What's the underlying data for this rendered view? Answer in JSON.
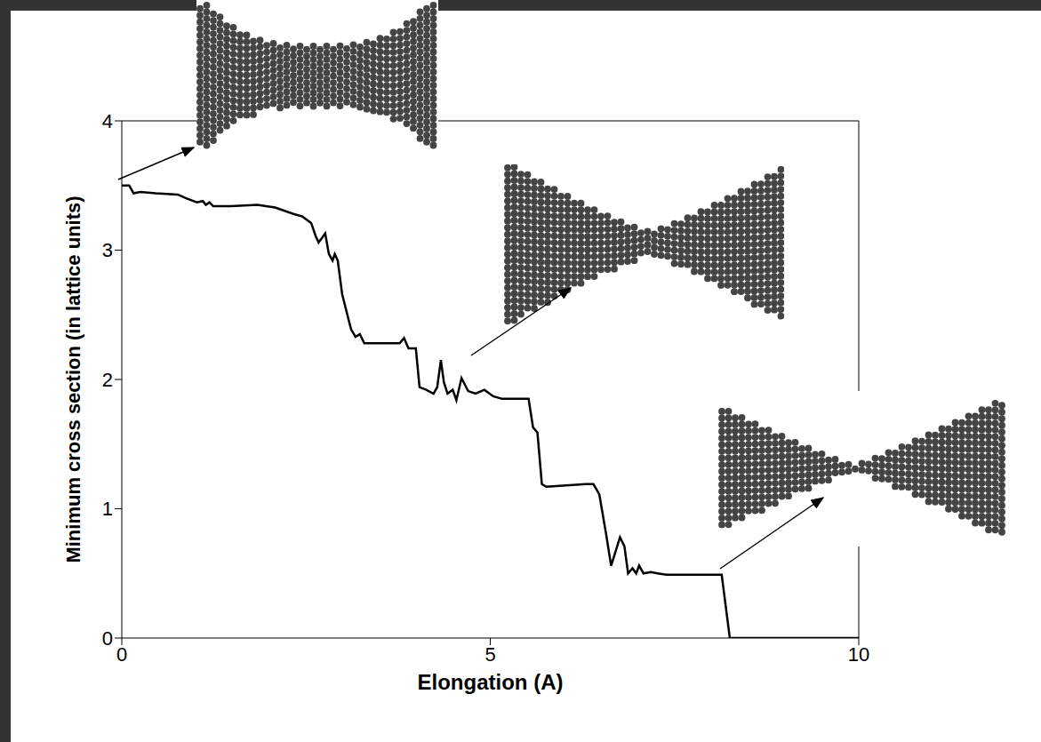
{
  "chart_data": {
    "type": "line",
    "x_label": "Elongation (A)",
    "y_label": "Minimum cross section (in lattice units)",
    "xlim": [
      0,
      10
    ],
    "ylim": [
      0,
      4
    ],
    "xticks": [
      0,
      5,
      10
    ],
    "yticks": [
      0,
      1,
      2,
      3,
      4
    ],
    "grid": false,
    "color": "#000000",
    "x": [
      0,
      0.1,
      0.16,
      0.25,
      0.46,
      0.76,
      0.88,
      1.02,
      1.1,
      1.14,
      1.19,
      1.24,
      1.48,
      1.84,
      2.08,
      2.33,
      2.45,
      2.57,
      2.63,
      2.67,
      2.71,
      2.76,
      2.81,
      2.86,
      2.89,
      2.93,
      2.99,
      3.11,
      3.17,
      3.23,
      3.29,
      3.77,
      3.83,
      3.89,
      3.99,
      4.04,
      4.13,
      4.23,
      4.28,
      4.33,
      4.37,
      4.42,
      4.49,
      4.54,
      4.61,
      4.7,
      4.8,
      4.92,
      5.04,
      5.16,
      5.46,
      5.52,
      5.58,
      5.64,
      5.7,
      5.76,
      6.3,
      6.4,
      6.48,
      6.57,
      6.64,
      6.7,
      6.76,
      6.82,
      6.87,
      6.93,
      6.98,
      7.02,
      7.08,
      7.18,
      7.27,
      7.39,
      7.99,
      8.14,
      8.25,
      10
    ],
    "values": [
      3.5,
      3.5,
      3.44,
      3.45,
      3.44,
      3.43,
      3.4,
      3.37,
      3.38,
      3.35,
      3.37,
      3.34,
      3.34,
      3.35,
      3.33,
      3.28,
      3.26,
      3.21,
      3.11,
      3.06,
      3.09,
      3.13,
      2.97,
      2.92,
      2.97,
      2.92,
      2.66,
      2.39,
      2.33,
      2.35,
      2.28,
      2.28,
      2.32,
      2.24,
      2.24,
      1.94,
      1.92,
      1.89,
      1.94,
      2.15,
      1.98,
      1.89,
      1.92,
      1.84,
      2.01,
      1.91,
      1.89,
      1.92,
      1.87,
      1.85,
      1.85,
      1.85,
      1.63,
      1.59,
      1.19,
      1.17,
      1.19,
      1.19,
      1.11,
      0.81,
      0.56,
      0.67,
      0.78,
      0.71,
      0.5,
      0.54,
      0.5,
      0.56,
      0.5,
      0.51,
      0.5,
      0.49,
      0.49,
      0.49,
      0,
      0
    ]
  }
}
